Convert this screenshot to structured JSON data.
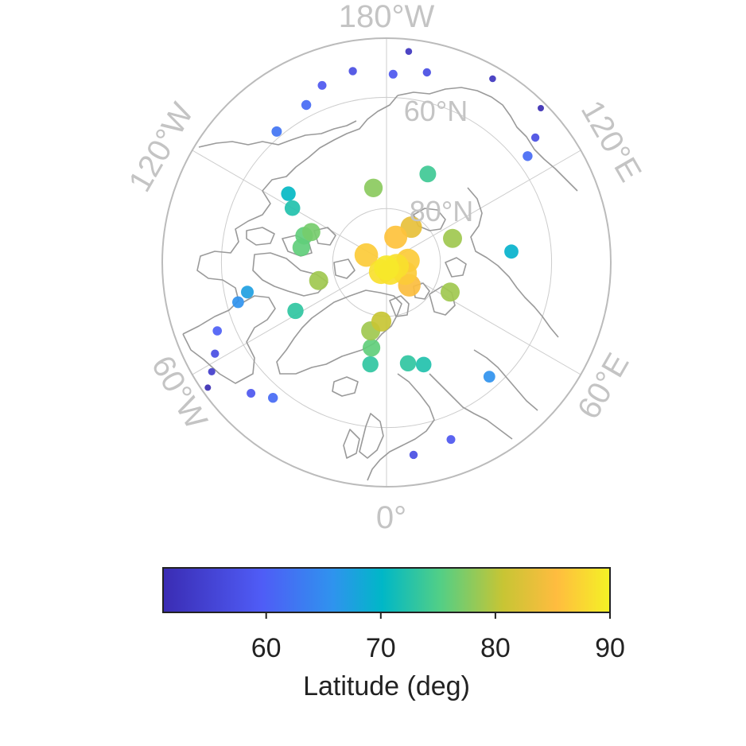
{
  "map": {
    "projection": "north-polar-stereographic",
    "graticule": {
      "longitude_labels": [
        "180°W",
        "120°E",
        "60°E",
        "0°",
        "60°W",
        "120°W"
      ],
      "latitude_labels": [
        "60°N",
        "80°N"
      ]
    }
  },
  "colorbar": {
    "label": "Latitude (deg)",
    "ticks": [
      "60",
      "70",
      "80",
      "90"
    ],
    "range": [
      51,
      90
    ],
    "colors": [
      "#3a2cb3",
      "#4f5cf6",
      "#2f93ee",
      "#00b7c7",
      "#52cf86",
      "#c7c534",
      "#ffbc3f",
      "#f4f225"
    ]
  },
  "chart_data": {
    "type": "scatter",
    "x_name": "longitude (deg)",
    "y_name": "latitude (deg)",
    "color_name": "latitude (deg)",
    "points": [
      {
        "lon": 174,
        "lat": 52
      },
      {
        "lon": 168,
        "lat": 55
      },
      {
        "lon": 178,
        "lat": 56
      },
      {
        "lon": -170,
        "lat": 55
      },
      {
        "lon": -160,
        "lat": 56
      },
      {
        "lon": 150,
        "lat": 52
      },
      {
        "lon": 135,
        "lat": 51
      },
      {
        "lon": 130,
        "lat": 55
      },
      {
        "lon": 127,
        "lat": 58
      },
      {
        "lon": -153,
        "lat": 58
      },
      {
        "lon": -140,
        "lat": 59
      },
      {
        "lon": -125,
        "lat": 68
      },
      {
        "lon": -120,
        "lat": 70
      },
      {
        "lon": -108,
        "lat": 74
      },
      {
        "lon": -112,
        "lat": 75
      },
      {
        "lon": -100,
        "lat": 74
      },
      {
        "lon": -170,
        "lat": 76
      },
      {
        "lon": 155,
        "lat": 72
      },
      {
        "lon": 95,
        "lat": 67
      },
      {
        "lon": 145,
        "lat": 82
      },
      {
        "lon": 110,
        "lat": 77
      },
      {
        "lon": 65,
        "lat": 77
      },
      {
        "lon": -75,
        "lat": 77
      },
      {
        "lon": -62,
        "lat": 71
      },
      {
        "lon": -78,
        "lat": 64
      },
      {
        "lon": -75,
        "lat": 62
      },
      {
        "lon": -68,
        "lat": 57
      },
      {
        "lon": -62,
        "lat": 55
      },
      {
        "lon": -58,
        "lat": 53
      },
      {
        "lon": -55,
        "lat": 51
      },
      {
        "lon": -46,
        "lat": 56
      },
      {
        "lon": -40,
        "lat": 58
      },
      {
        "lon": -5,
        "lat": 79
      },
      {
        "lon": -13,
        "lat": 77
      },
      {
        "lon": -10,
        "lat": 74
      },
      {
        "lon": -9,
        "lat": 71
      },
      {
        "lon": 12,
        "lat": 71
      },
      {
        "lon": 20,
        "lat": 70
      },
      {
        "lon": 42,
        "lat": 62
      },
      {
        "lon": 8,
        "lat": 55
      },
      {
        "lon": 20,
        "lat": 56
      },
      {
        "lon": 160,
        "lat": 85
      },
      {
        "lon": -110,
        "lat": 86
      },
      {
        "lon": 95,
        "lat": 86
      },
      {
        "lon": 45,
        "lat": 84
      },
      {
        "lon": 60,
        "lat": 86
      },
      {
        "lon": 70,
        "lat": 88
      },
      {
        "lon": -30,
        "lat": 88
      },
      {
        "lon": 20,
        "lat": 88
      },
      {
        "lon": 0,
        "lat": 89
      }
    ]
  }
}
